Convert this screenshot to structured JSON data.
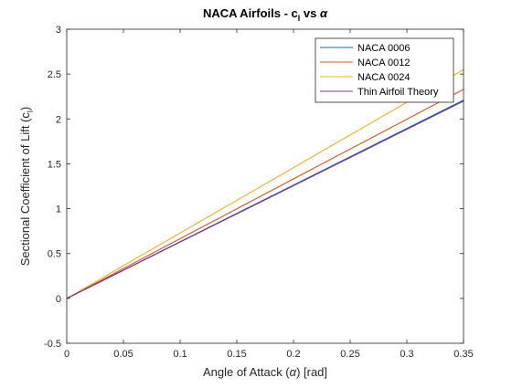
{
  "chart_data": {
    "type": "line",
    "title_main": "NACA Airfoils - c",
    "title_sub": "l",
    "title_vs": " vs ",
    "title_alpha": "α",
    "xlabel_prefix": "Angle of Attack (",
    "xlabel_alpha": "α",
    "xlabel_suffix": ") [rad]",
    "ylabel_main": "Sectional Coefficient of Lift (c",
    "ylabel_sub": "l",
    "ylabel_suffix": ")",
    "xlim": [
      0,
      0.35
    ],
    "ylim": [
      -0.5,
      3
    ],
    "x_ticks": [
      0,
      0.05,
      0.1,
      0.15,
      0.2,
      0.25,
      0.3,
      0.35
    ],
    "x_tick_labels": [
      "0",
      "0.05",
      "0.1",
      "0.15",
      "0.2",
      "0.25",
      "0.3",
      "0.35"
    ],
    "y_ticks": [
      -0.5,
      0,
      0.5,
      1,
      1.5,
      2,
      2.5,
      3
    ],
    "y_tick_labels": [
      "-0.5",
      "0",
      "0.5",
      "1",
      "1.5",
      "2",
      "2.5",
      "3"
    ],
    "grid": false,
    "legend_position": "top-right",
    "series": [
      {
        "name": "NACA 0006",
        "color": "#0072BD",
        "x": [
          0,
          0.35
        ],
        "y": [
          0,
          2.21
        ]
      },
      {
        "name": "NACA 0012",
        "color": "#D95319",
        "x": [
          0,
          0.35
        ],
        "y": [
          0,
          2.33
        ]
      },
      {
        "name": "NACA 0024",
        "color": "#EDB120",
        "x": [
          0,
          0.35
        ],
        "y": [
          0,
          2.55
        ]
      },
      {
        "name": "Thin Airfoil Theory",
        "color": "#7E2F8E",
        "x": [
          0,
          0.35
        ],
        "y": [
          0,
          2.199
        ]
      }
    ]
  }
}
